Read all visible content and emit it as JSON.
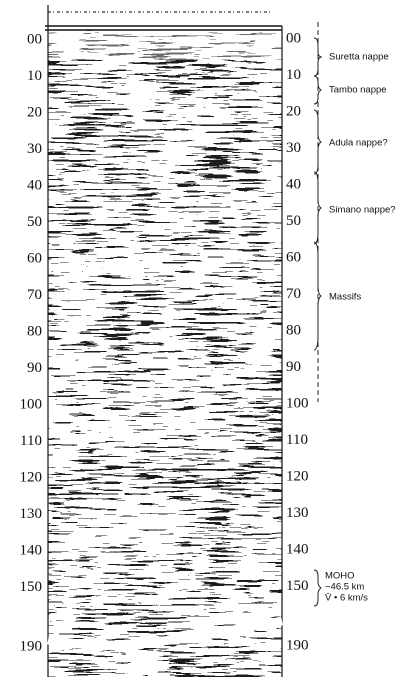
{
  "depth_labels_left": [
    "00",
    "10",
    "20",
    "30",
    "40",
    "50",
    "60",
    "70",
    "80",
    "90",
    "100",
    "110",
    "120",
    "130",
    "140",
    "150",
    "190"
  ],
  "depth_labels_right": [
    "00",
    "10",
    "20",
    "30",
    "40",
    "50",
    "60",
    "70",
    "80",
    "90",
    "100",
    "110",
    "120",
    "130",
    "140",
    "150",
    "190"
  ],
  "annotations": [
    "Suretta nappe",
    "Tambo nappe",
    "Adula nappe?",
    "Simano nappe?",
    "Massifs"
  ],
  "moho": [
    "MOHO",
    "~46.5 km",
    "V̄ • 6 km/s"
  ]
}
